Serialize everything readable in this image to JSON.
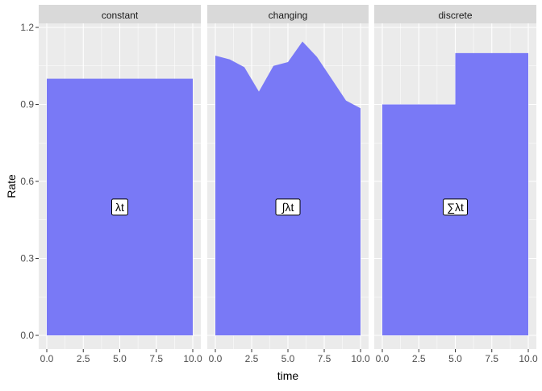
{
  "chart_data": {
    "type": "area",
    "title": "",
    "xlabel": "time",
    "ylabel": "Rate",
    "xlim": [
      0,
      10
    ],
    "ylim": [
      0,
      1.2
    ],
    "x_ticks": [
      0,
      2.5,
      5,
      7.5,
      10
    ],
    "x_tick_labels": [
      "0.0",
      "2.5",
      "5.0",
      "7.5",
      "10.0"
    ],
    "y_ticks": [
      0,
      0.3,
      0.6,
      0.9,
      1.2
    ],
    "y_tick_labels": [
      "0.0",
      "0.3",
      "0.6",
      "0.9",
      "1.2"
    ],
    "grid": true,
    "legend": "none",
    "fill_color": "#7676F6",
    "panel_background": "#EBEBEB",
    "strip_background": "#D9D9D9",
    "panels": [
      {
        "name": "constant",
        "x": [
          0,
          10
        ],
        "y": [
          1.0,
          1.0
        ],
        "step": false,
        "annotation": {
          "text": "λt",
          "x": 5,
          "y": 0.5
        }
      },
      {
        "name": "changing",
        "x": [
          0,
          1,
          2,
          3,
          4,
          5,
          6,
          7,
          8,
          9,
          10
        ],
        "y": [
          1.09,
          1.075,
          1.045,
          0.95,
          1.05,
          1.065,
          1.145,
          1.085,
          1.0,
          0.915,
          0.885
        ],
        "step": false,
        "annotation": {
          "text": "∫λt",
          "x": 5,
          "y": 0.5
        }
      },
      {
        "name": "discrete",
        "x": [
          0,
          5,
          10
        ],
        "y": [
          0.9,
          1.1,
          1.1
        ],
        "step": true,
        "annotation": {
          "text": "∑λt",
          "x": 5,
          "y": 0.5
        }
      }
    ]
  }
}
